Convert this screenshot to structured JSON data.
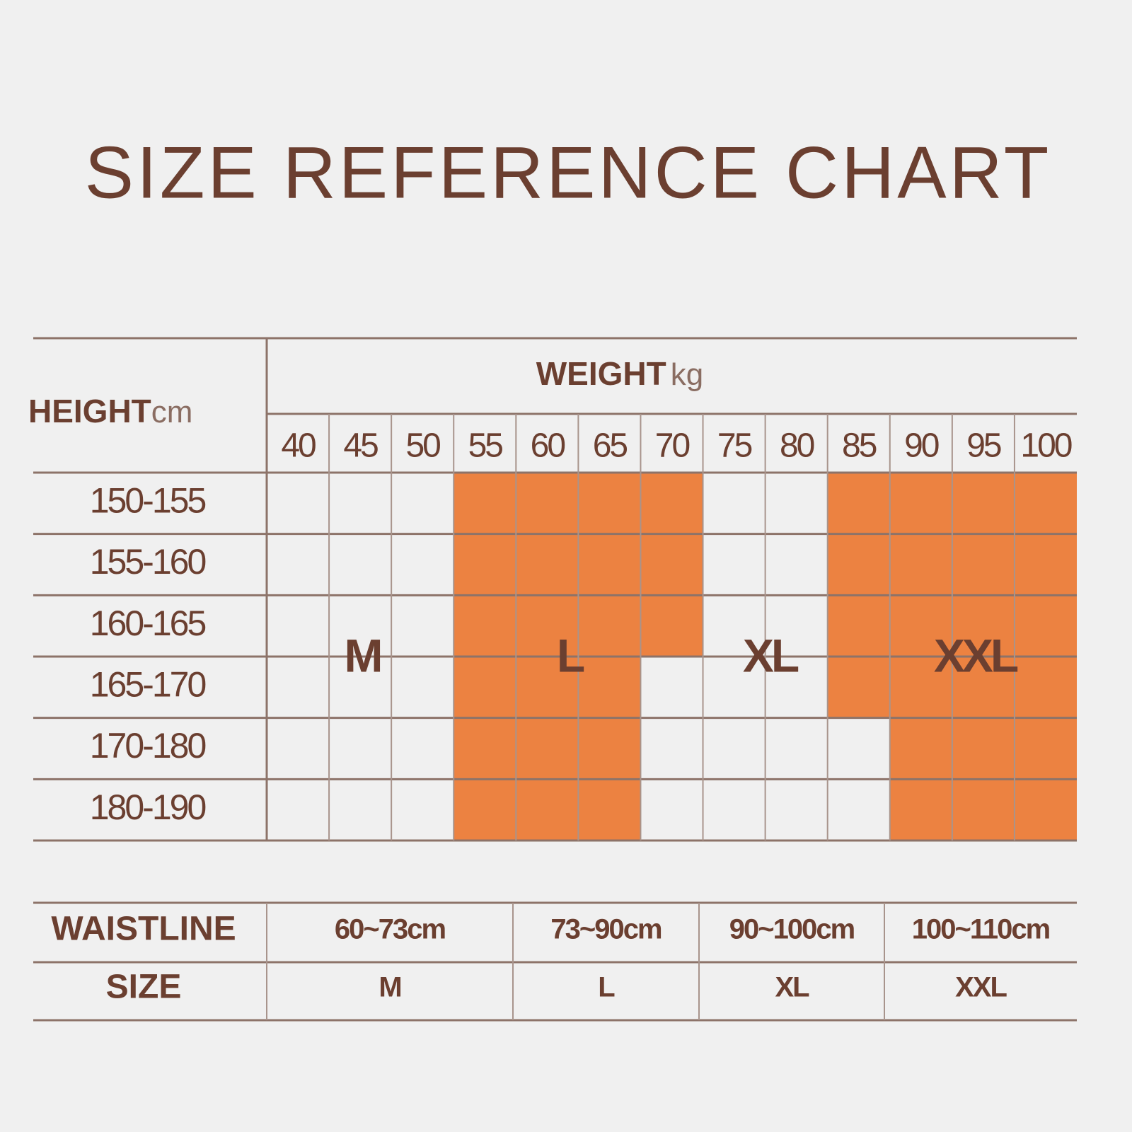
{
  "title": "SIZE REFERENCE CHART",
  "grid": {
    "height_label": "HEIGHT",
    "height_unit": "cm",
    "weight_label": "WEIGHT",
    "weight_unit": "kg",
    "highlight_color": "#ec8241",
    "weights": [
      40,
      45,
      50,
      55,
      60,
      65,
      70,
      75,
      80,
      85,
      90,
      95,
      100
    ],
    "heights": [
      "150-155",
      "155-160",
      "160-165",
      "165-170",
      "170-180",
      "180-190"
    ],
    "shaded": [
      [
        0,
        0,
        0,
        1,
        1,
        1,
        1,
        0,
        0,
        1,
        1,
        1,
        1
      ],
      [
        0,
        0,
        0,
        1,
        1,
        1,
        1,
        0,
        0,
        1,
        1,
        1,
        1
      ],
      [
        0,
        0,
        0,
        1,
        1,
        1,
        1,
        0,
        0,
        1,
        1,
        1,
        1
      ],
      [
        0,
        0,
        0,
        1,
        1,
        1,
        0,
        0,
        0,
        1,
        1,
        1,
        1
      ],
      [
        0,
        0,
        0,
        1,
        1,
        1,
        0,
        0,
        0,
        0,
        1,
        1,
        1
      ],
      [
        0,
        0,
        0,
        1,
        1,
        1,
        0,
        0,
        0,
        0,
        1,
        1,
        1
      ]
    ],
    "size_labels": [
      "M",
      "L",
      "XL",
      "XXL"
    ]
  },
  "waist_table": {
    "rows": [
      [
        "WAISTLINE",
        "60~73cm",
        "73~90cm",
        "90~100cm",
        "100~110cm"
      ],
      [
        "SIZE",
        "M",
        "L",
        "XL",
        "XXL"
      ]
    ]
  }
}
